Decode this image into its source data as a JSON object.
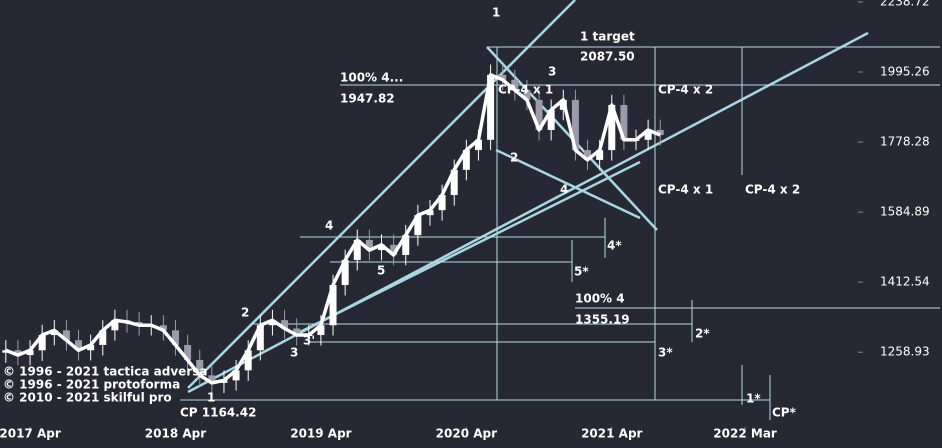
{
  "chart_data": {
    "type": "candlestick",
    "x": [
      1,
      2,
      3,
      4,
      5,
      6,
      7,
      8,
      9,
      10,
      11,
      12,
      13,
      14,
      15,
      16,
      17,
      18,
      19,
      20,
      21,
      22,
      23,
      24,
      25,
      26,
      27,
      28,
      29,
      30,
      31,
      32,
      33,
      34,
      35,
      36,
      37,
      38,
      39,
      40,
      41,
      42,
      43,
      44,
      45,
      46,
      47,
      48,
      49,
      50,
      51,
      52,
      53,
      54,
      55
    ],
    "open": [
      1258,
      1263,
      1253,
      1263,
      1295,
      1305,
      1284,
      1263,
      1274,
      1305,
      1327,
      1323,
      1316,
      1316,
      1305,
      1274,
      1243,
      1212,
      1197,
      1202,
      1222,
      1263,
      1316,
      1327,
      1309,
      1295,
      1295,
      1316,
      1406,
      1465,
      1514,
      1489,
      1502,
      1477,
      1526,
      1577,
      1590,
      1630,
      1699,
      1755,
      1785,
      1986,
      1970,
      1937,
      1906,
      1814,
      1875,
      1906,
      1755,
      1727,
      1755,
      1890,
      1785,
      1785,
      1814
    ],
    "high": [
      1284,
      1284,
      1284,
      1317,
      1327,
      1327,
      1306,
      1296,
      1327,
      1350,
      1350,
      1345,
      1338,
      1338,
      1327,
      1296,
      1264,
      1233,
      1222,
      1243,
      1284,
      1338,
      1350,
      1350,
      1331,
      1317,
      1338,
      1430,
      1490,
      1540,
      1540,
      1528,
      1528,
      1552,
      1604,
      1617,
      1658,
      1728,
      1785,
      1815,
      2020,
      2020,
      2003,
      1970,
      1938,
      1907,
      1938,
      1938,
      1785,
      1785,
      1922,
      1922,
      1815,
      1845,
      1845
    ],
    "low": [
      1237,
      1232,
      1232,
      1241,
      1273,
      1262,
      1242,
      1242,
      1252,
      1283,
      1300,
      1294,
      1294,
      1283,
      1252,
      1222,
      1191,
      1177,
      1177,
      1182,
      1201,
      1242,
      1294,
      1287,
      1273,
      1273,
      1273,
      1294,
      1382,
      1440,
      1464,
      1464,
      1452,
      1452,
      1500,
      1550,
      1563,
      1602,
      1670,
      1725,
      1755,
      1937,
      1904,
      1874,
      1783,
      1783,
      1843,
      1725,
      1698,
      1698,
      1725,
      1755,
      1755,
      1755,
      1768
    ],
    "close": [
      1263,
      1253,
      1263,
      1295,
      1305,
      1284,
      1263,
      1274,
      1305,
      1327,
      1323,
      1316,
      1316,
      1305,
      1274,
      1243,
      1212,
      1197,
      1202,
      1222,
      1263,
      1316,
      1327,
      1309,
      1295,
      1295,
      1316,
      1406,
      1465,
      1514,
      1489,
      1502,
      1477,
      1526,
      1577,
      1590,
      1630,
      1699,
      1755,
      1785,
      1986,
      1970,
      1937,
      1906,
      1814,
      1875,
      1906,
      1755,
      1727,
      1755,
      1890,
      1785,
      1785,
      1814,
      1799
    ],
    "up_color": "#ffffff",
    "down_color": "#9b9bab",
    "line_color": "#ffffff",
    "ylog": true,
    "ylim": [
      1117,
      2246
    ],
    "yticks": [
      1258.93,
      1412.54,
      1584.89,
      1778.28,
      1995.26,
      2238.72
    ],
    "xlim": [
      0.52,
      71.07
    ],
    "xticks": [
      {
        "value": 3,
        "label": "2017 Apr"
      },
      {
        "value": 15,
        "label": "2018 Apr"
      },
      {
        "value": 27,
        "label": "2019 Apr"
      },
      {
        "value": 39,
        "label": "2020 Apr"
      },
      {
        "value": 51,
        "label": "2021 Apr"
      },
      {
        "value": 62,
        "label": "2022 Mar"
      }
    ],
    "annotations": [
      "1",
      "1 target",
      "2087.50",
      "100%  4...",
      "1947.82",
      "CP-4 x 1",
      "3",
      "CP-4 x 2",
      "2",
      "4",
      "CP-4 x 1",
      "CP-4 x 2",
      "4",
      "5",
      "4*",
      "5*",
      "2",
      "3",
      "3'",
      "100%  4",
      "1355.19",
      "2*",
      "3*",
      "1",
      "1*",
      "CP  1164.42",
      "CP*"
    ],
    "copyright": [
      "© 1996 - 2021 tactica adversa",
      "© 1996 - 2021 protoforma",
      "© 2010 - 2021 skilful pro"
    ]
  }
}
